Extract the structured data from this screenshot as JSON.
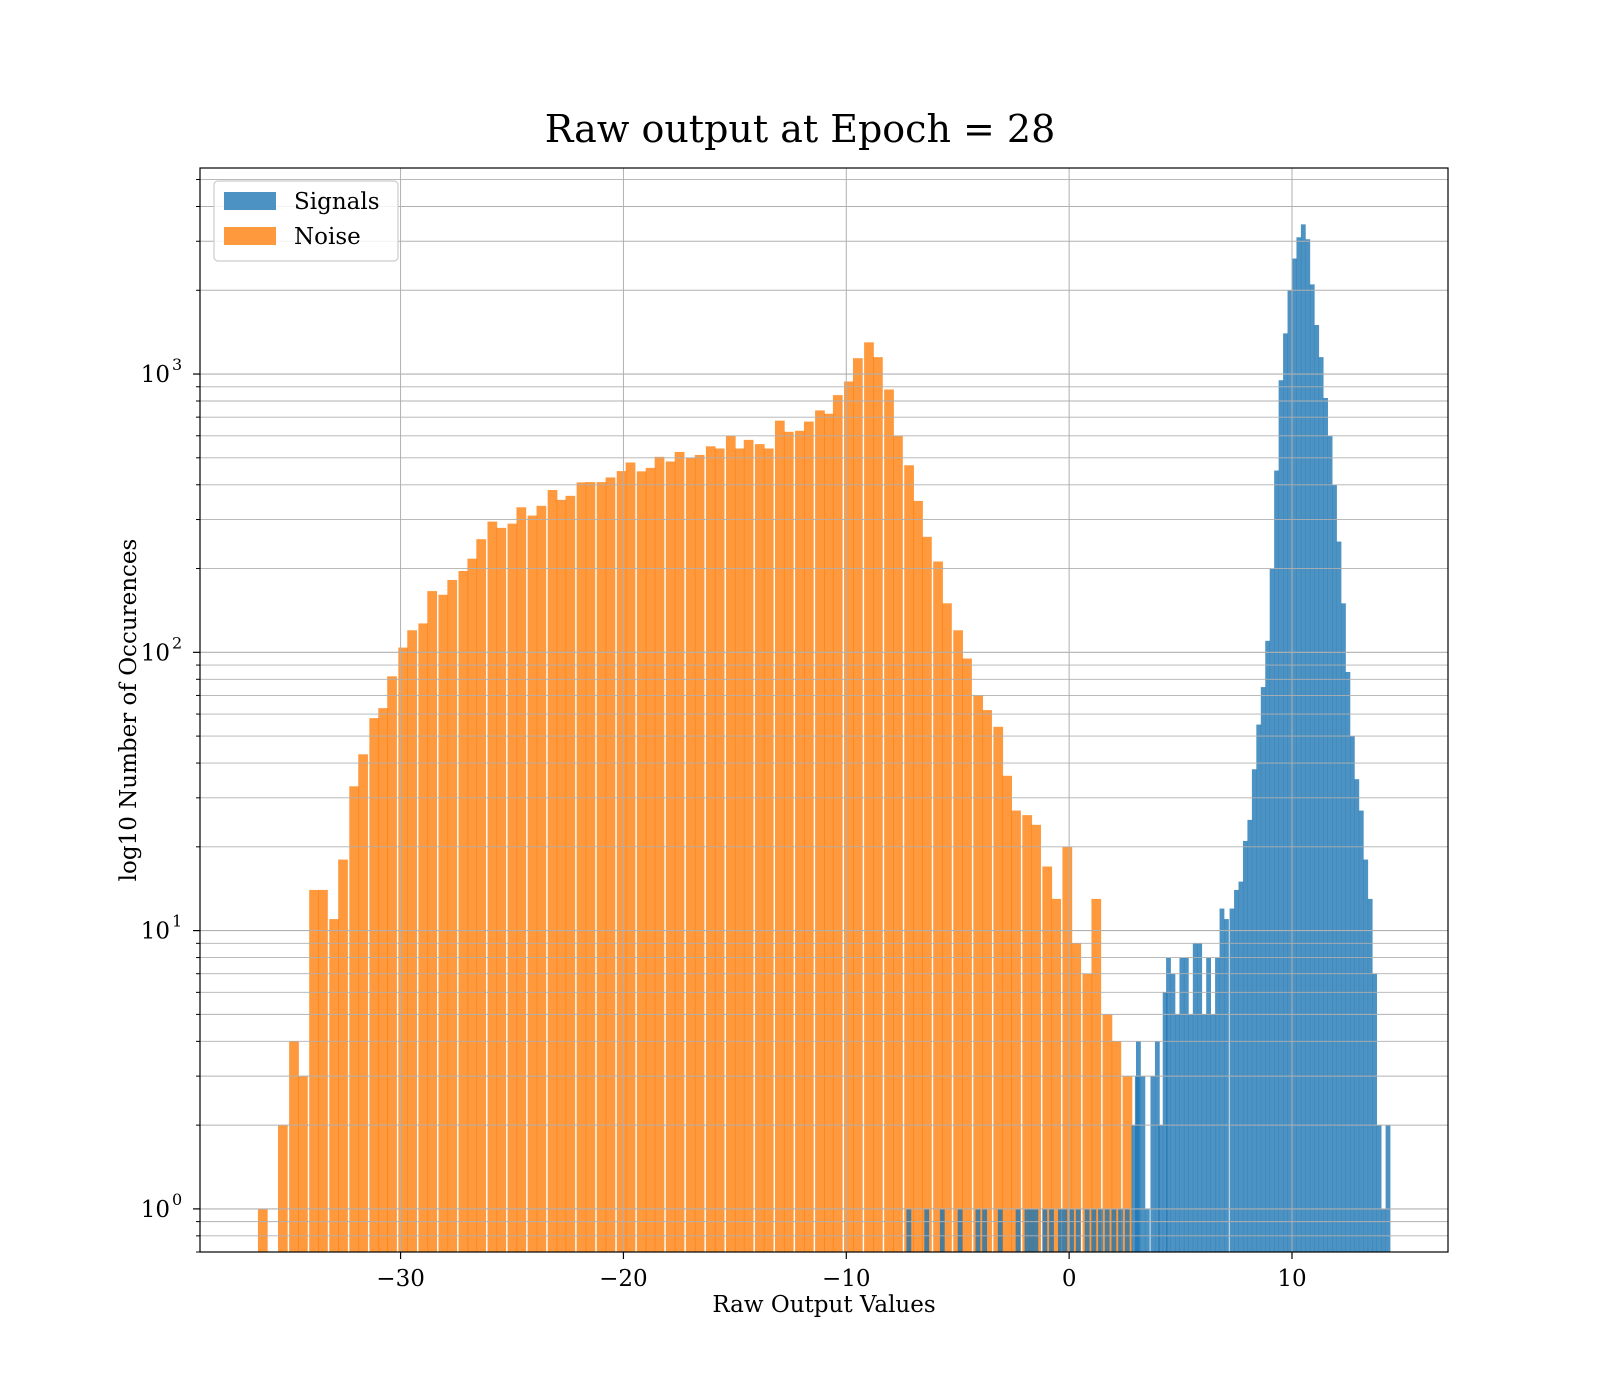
{
  "chart_data": {
    "type": "bar",
    "subtype": "overlaid histogram",
    "title": "Raw output at Epoch = 28",
    "xlabel": "Raw Output Values",
    "ylabel": "log10 Number of Occurences",
    "xlim": [
      -39,
      17
    ],
    "ylim": [
      0.7,
      5500
    ],
    "yscale": "log",
    "x_ticks": [
      -30,
      -20,
      -10,
      0,
      10
    ],
    "x_tick_labels": [
      "−30",
      "−20",
      "−10",
      "0",
      "10"
    ],
    "y_tick_labels": [
      {
        "base": "10",
        "exp": "0",
        "value": 1
      },
      {
        "base": "10",
        "exp": "1",
        "value": 10
      },
      {
        "base": "10",
        "exp": "2",
        "value": 100
      },
      {
        "base": "10",
        "exp": "3",
        "value": 1000
      }
    ],
    "grid": true,
    "legend_position": "top-left",
    "series": [
      {
        "name": "Signals",
        "color": "#1f77b4",
        "opacity": 0.8,
        "bin_width": 0.2154,
        "bins": [
          [
            -7.3,
            1
          ],
          [
            -6.5,
            1
          ],
          [
            -5.8,
            1
          ],
          [
            -5.0,
            1
          ],
          [
            -4.2,
            1
          ],
          [
            -3.9,
            1
          ],
          [
            -3.2,
            1
          ],
          [
            -2.4,
            1
          ],
          [
            -2.0,
            1
          ],
          [
            -1.8,
            1
          ],
          [
            -1.6,
            1
          ],
          [
            -1.2,
            1
          ],
          [
            -0.9,
            1
          ],
          [
            -0.5,
            1
          ],
          [
            -0.3,
            1
          ],
          [
            0.0,
            1
          ],
          [
            0.3,
            1
          ],
          [
            0.7,
            1
          ],
          [
            1.0,
            1
          ],
          [
            1.3,
            1
          ],
          [
            1.6,
            1
          ],
          [
            1.9,
            1
          ],
          [
            2.2,
            1
          ],
          [
            2.5,
            1
          ],
          [
            2.8,
            2
          ],
          [
            2.95,
            3
          ],
          [
            3.0,
            4
          ],
          [
            3.2,
            3
          ],
          [
            3.4,
            1
          ],
          [
            3.65,
            3
          ],
          [
            3.85,
            4
          ],
          [
            4.0,
            2
          ],
          [
            4.2,
            6
          ],
          [
            4.35,
            8
          ],
          [
            4.55,
            7
          ],
          [
            4.75,
            5
          ],
          [
            4.95,
            8
          ],
          [
            5.15,
            8
          ],
          [
            5.35,
            5
          ],
          [
            5.55,
            9
          ],
          [
            5.75,
            9
          ],
          [
            5.95,
            5
          ],
          [
            6.15,
            8
          ],
          [
            6.35,
            5
          ],
          [
            6.55,
            8
          ],
          [
            6.75,
            12
          ],
          [
            6.95,
            11
          ],
          [
            7.2,
            12
          ],
          [
            7.4,
            14
          ],
          [
            7.6,
            15
          ],
          [
            7.8,
            21
          ],
          [
            8.0,
            25
          ],
          [
            8.2,
            38
          ],
          [
            8.4,
            55
          ],
          [
            8.6,
            75
          ],
          [
            8.8,
            110
          ],
          [
            9.0,
            200
          ],
          [
            9.2,
            450
          ],
          [
            9.4,
            950
          ],
          [
            9.6,
            1400
          ],
          [
            9.8,
            2000
          ],
          [
            10.0,
            2600
          ],
          [
            10.2,
            3100
          ],
          [
            10.4,
            3450
          ],
          [
            10.6,
            3050
          ],
          [
            10.8,
            2100
          ],
          [
            11.0,
            1500
          ],
          [
            11.2,
            1150
          ],
          [
            11.4,
            820
          ],
          [
            11.6,
            600
          ],
          [
            11.8,
            400
          ],
          [
            12.0,
            250
          ],
          [
            12.2,
            150
          ],
          [
            12.4,
            85
          ],
          [
            12.6,
            50
          ],
          [
            12.8,
            35
          ],
          [
            13.0,
            27
          ],
          [
            13.2,
            18
          ],
          [
            13.4,
            13
          ],
          [
            13.6,
            7
          ],
          [
            13.8,
            2
          ],
          [
            14.0,
            1
          ],
          [
            14.2,
            2
          ]
        ]
      },
      {
        "name": "Noise",
        "color": "#ff7f0e",
        "opacity": 0.8,
        "bin_width": 0.436,
        "bins": [
          [
            -36.4,
            1
          ],
          [
            -35.5,
            2
          ],
          [
            -35.0,
            4
          ],
          [
            -34.6,
            3
          ],
          [
            -34.1,
            14
          ],
          [
            -33.7,
            14
          ],
          [
            -33.2,
            11
          ],
          [
            -32.8,
            18
          ],
          [
            -32.3,
            33
          ],
          [
            -31.9,
            43
          ],
          [
            -31.4,
            58
          ],
          [
            -31.0,
            63
          ],
          [
            -30.6,
            82
          ],
          [
            -30.1,
            104
          ],
          [
            -29.7,
            120
          ],
          [
            -29.2,
            127
          ],
          [
            -28.8,
            166
          ],
          [
            -28.3,
            161
          ],
          [
            -27.9,
            182
          ],
          [
            -27.4,
            196
          ],
          [
            -27.0,
            217
          ],
          [
            -26.6,
            255
          ],
          [
            -26.1,
            295
          ],
          [
            -25.7,
            280
          ],
          [
            -25.2,
            290
          ],
          [
            -24.8,
            332
          ],
          [
            -24.3,
            310
          ],
          [
            -23.9,
            336
          ],
          [
            -23.4,
            383
          ],
          [
            -23.0,
            353
          ],
          [
            -22.6,
            365
          ],
          [
            -22.1,
            408
          ],
          [
            -21.7,
            409
          ],
          [
            -21.2,
            409
          ],
          [
            -20.8,
            425
          ],
          [
            -20.3,
            448
          ],
          [
            -19.9,
            481
          ],
          [
            -19.4,
            447
          ],
          [
            -19.0,
            460
          ],
          [
            -18.6,
            504
          ],
          [
            -18.1,
            485
          ],
          [
            -17.7,
            525
          ],
          [
            -17.2,
            500
          ],
          [
            -16.8,
            512
          ],
          [
            -16.3,
            550
          ],
          [
            -15.9,
            540
          ],
          [
            -15.4,
            600
          ],
          [
            -15.0,
            540
          ],
          [
            -14.6,
            580
          ],
          [
            -14.1,
            560
          ],
          [
            -13.7,
            540
          ],
          [
            -13.2,
            680
          ],
          [
            -12.8,
            620
          ],
          [
            -12.3,
            625
          ],
          [
            -11.9,
            675
          ],
          [
            -11.4,
            740
          ],
          [
            -11.0,
            720
          ],
          [
            -10.6,
            840
          ],
          [
            -10.1,
            940
          ],
          [
            -9.7,
            1140
          ],
          [
            -9.2,
            1300
          ],
          [
            -8.8,
            1150
          ],
          [
            -8.3,
            880
          ],
          [
            -7.9,
            600
          ],
          [
            -7.4,
            470
          ],
          [
            -7.0,
            350
          ],
          [
            -6.6,
            260
          ],
          [
            -6.1,
            212
          ],
          [
            -5.7,
            150
          ],
          [
            -5.2,
            120
          ],
          [
            -4.8,
            95
          ],
          [
            -4.3,
            70
          ],
          [
            -3.9,
            62
          ],
          [
            -3.4,
            54
          ],
          [
            -3.0,
            36
          ],
          [
            -2.6,
            27
          ],
          [
            -2.1,
            26
          ],
          [
            -1.7,
            24
          ],
          [
            -1.2,
            17
          ],
          [
            -0.8,
            13
          ],
          [
            -0.3,
            20
          ],
          [
            0.1,
            9
          ],
          [
            0.6,
            7
          ],
          [
            1.0,
            13
          ],
          [
            1.5,
            5
          ],
          [
            1.9,
            4
          ],
          [
            2.4,
            3
          ]
        ]
      }
    ]
  },
  "legend": {
    "items": [
      {
        "label": "Signals",
        "color": "#1f77b4"
      },
      {
        "label": "Noise",
        "color": "#ff7f0e"
      }
    ]
  }
}
